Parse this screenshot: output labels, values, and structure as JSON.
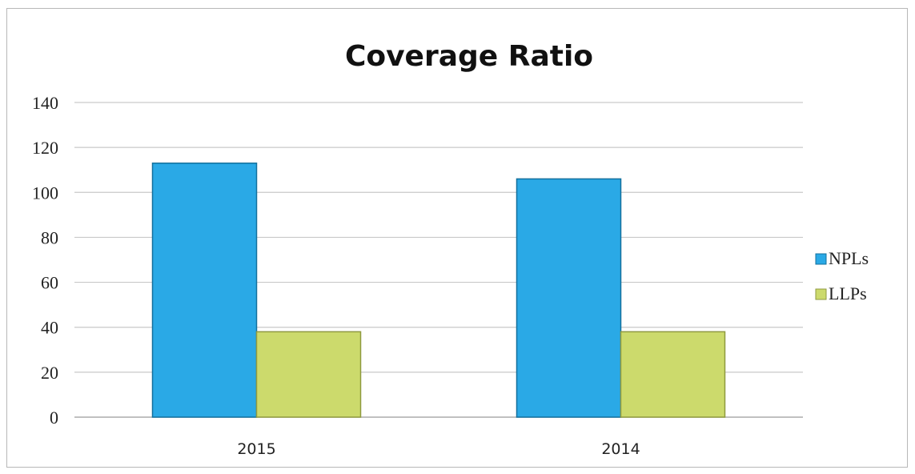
{
  "chart_data": {
    "type": "bar",
    "title": "Coverage Ratio",
    "categories": [
      "2015",
      "2014"
    ],
    "series": [
      {
        "name": "NPLs",
        "values": [
          113,
          106
        ],
        "color": "#2AA9E6",
        "edge": "#13709d"
      },
      {
        "name": "LLPs",
        "values": [
          38,
          38
        ],
        "color": "#CCDA6C",
        "edge": "#8f9a3f"
      }
    ],
    "yticks": [
      "0",
      "20",
      "40",
      "60",
      "80",
      "100",
      "120",
      "140"
    ],
    "ylim": [
      0,
      140
    ],
    "grid": true,
    "legend_position": "right"
  }
}
